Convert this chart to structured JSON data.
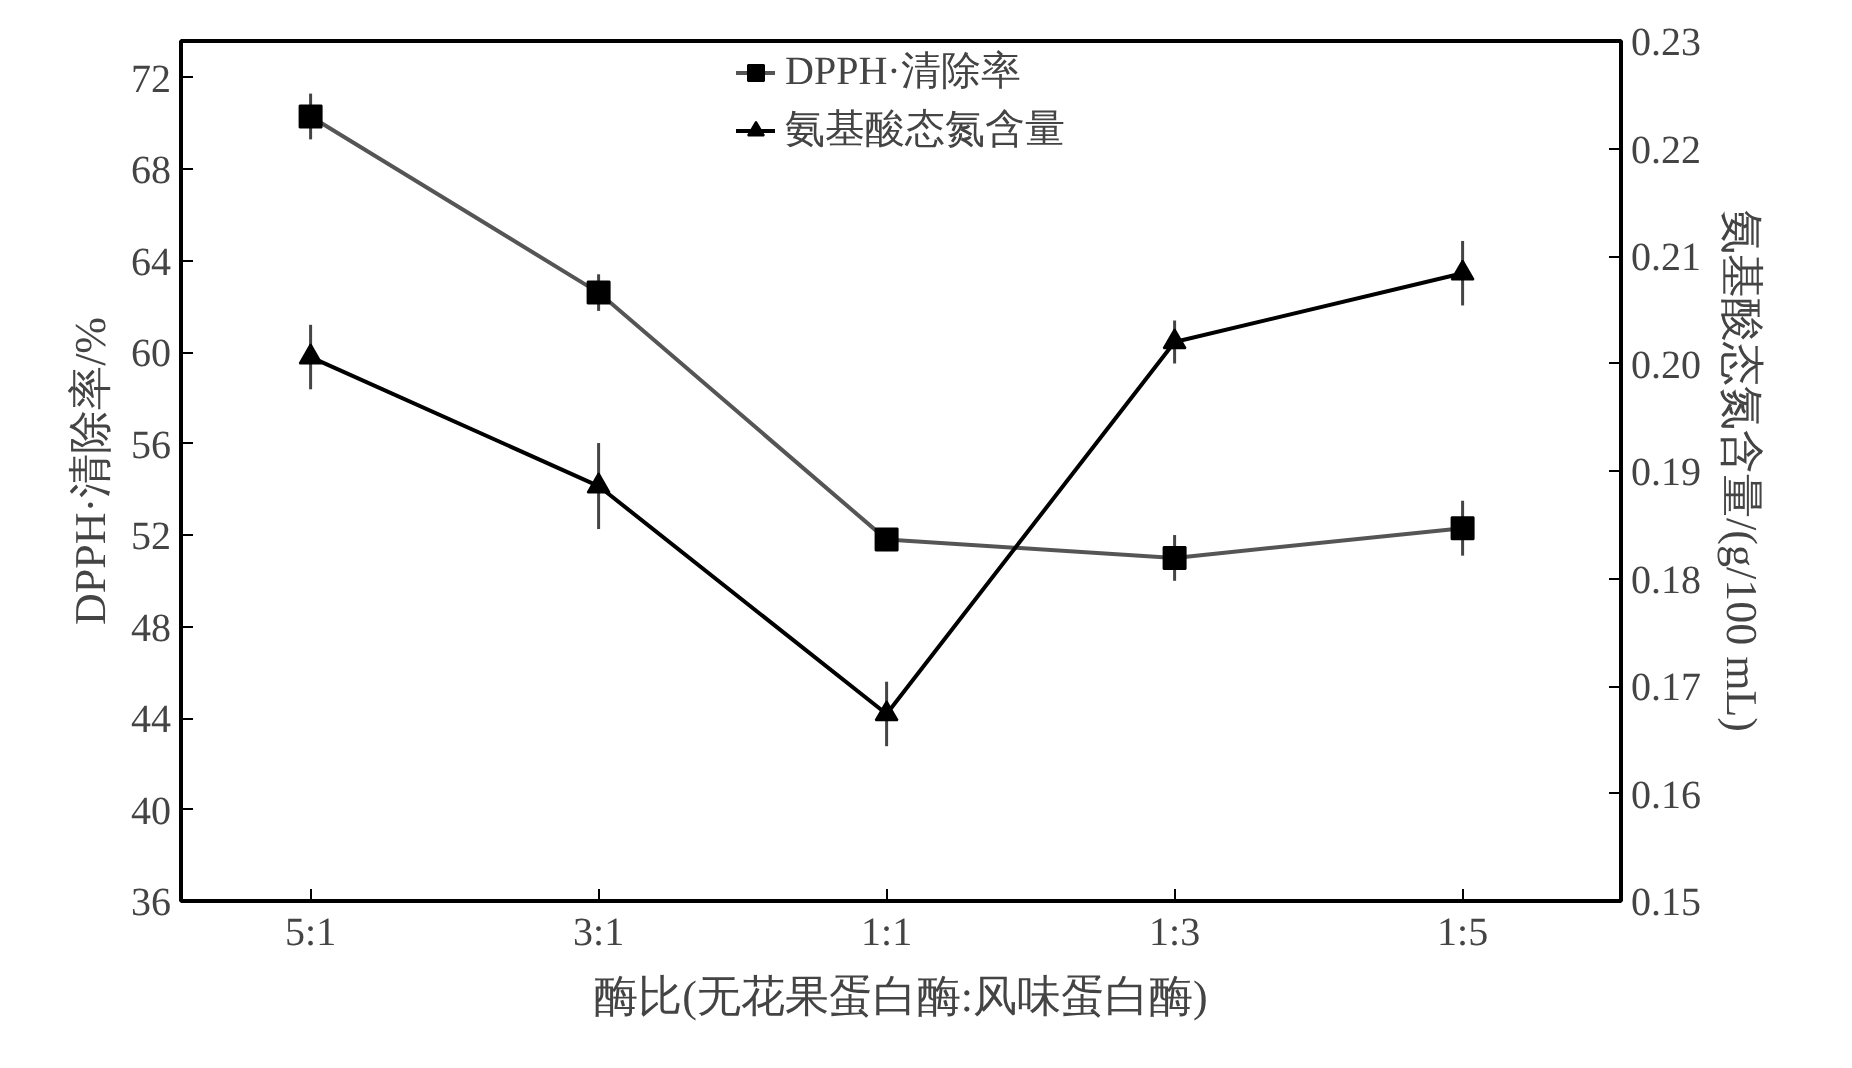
{
  "chart_data": {
    "type": "line",
    "xlabel": "酶比(无花果蛋白酶:风味蛋白酶)",
    "ylabel": "DPPH·清除率/%",
    "y2label": "氨基酸态氮含量/(g/100 mL)",
    "categories": [
      "5:1",
      "3:1",
      "1:1",
      "1:3",
      "1:5"
    ],
    "series": [
      {
        "name": "DPPH·清除率",
        "color": "#555555",
        "values": [
          70.3,
          62.6,
          51.8,
          51.0,
          52.3
        ],
        "errors": [
          1.0,
          0.8,
          0.5,
          1.0,
          1.2
        ],
        "marker": "square"
      },
      {
        "name": "氨基酸态氮含量",
        "color": "#000000",
        "values": [
          0.2006,
          0.1886,
          0.1674,
          0.202,
          0.2084
        ],
        "errors": [
          0.003,
          0.004,
          0.003,
          0.002,
          0.003
        ],
        "marker": "triangle",
        "axis": "y2"
      }
    ],
    "ylim": [
      36,
      73.6
    ],
    "yticks": [
      36,
      40,
      44,
      48,
      52,
      56,
      60,
      64,
      68,
      72
    ],
    "y2lim": [
      0.15,
      0.23
    ],
    "y2ticks": [
      {
        "value": 0.15,
        "label": "0.15"
      },
      {
        "value": 0.16,
        "label": "0.16"
      },
      {
        "value": 0.17,
        "label": "0.17"
      },
      {
        "value": 0.18,
        "label": "0.18"
      },
      {
        "value": 0.19,
        "label": "0.19"
      },
      {
        "value": 0.2,
        "label": "0.20"
      },
      {
        "value": 0.21,
        "label": "0.21"
      },
      {
        "value": 0.22,
        "label": "0.22"
      },
      {
        "value": 0.23,
        "label": "0.23"
      }
    ],
    "grid": false,
    "legend": "top",
    "line_style": "solid"
  }
}
